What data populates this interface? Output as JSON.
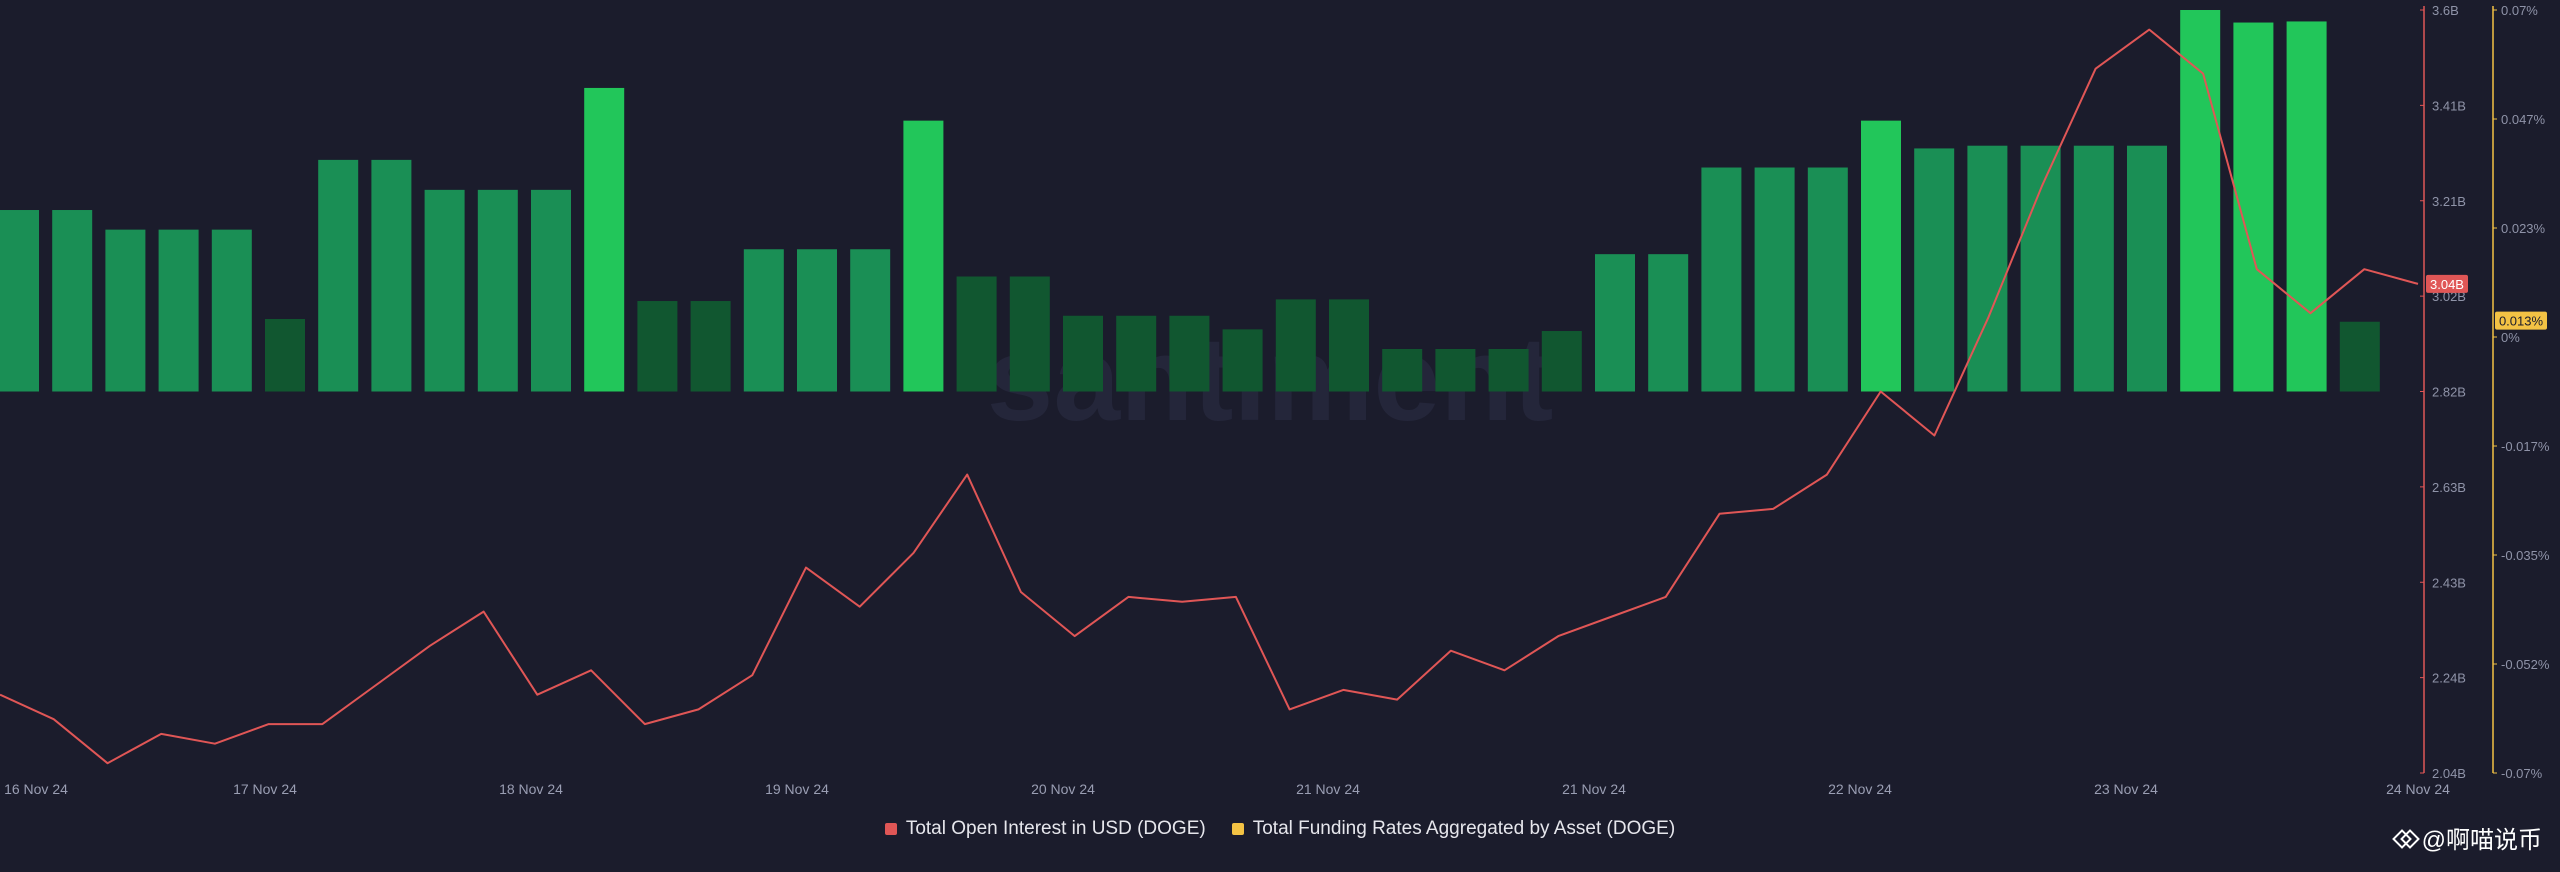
{
  "chart_data": {
    "type": "bar+line",
    "background_watermark": "santiment",
    "x_tick_labels": [
      "16 Nov 24",
      "17 Nov 24",
      "18 Nov 24",
      "19 Nov 24",
      "20 Nov 24",
      "21 Nov 24",
      "21 Nov 24",
      "22 Nov 24",
      "23 Nov 24",
      "24 Nov 24"
    ],
    "left_axis": {
      "name": "Total Open Interest in USD (DOGE)",
      "ticks": [
        "3.6B",
        "3.41B",
        "3.21B",
        "3.02B",
        "2.82B",
        "2.63B",
        "2.43B",
        "2.24B",
        "2.04B"
      ],
      "range": [
        2.04,
        3.6
      ],
      "current_value_label": "3.04B",
      "color": "#e05656"
    },
    "right_axis": {
      "name": "Total Funding Rates Aggregated by Asset (DOGE)",
      "ticks": [
        "0.07%",
        "0.047%",
        "0.023%",
        "0%",
        "-0.017%",
        "-0.035%",
        "-0.052%",
        "-0.07%"
      ],
      "range": [
        -0.07,
        0.07
      ],
      "current_value_label": "0.013%",
      "color": "#f3c244"
    },
    "series": [
      {
        "name": "Total Funding Rates Aggregated by Asset (DOGE)",
        "kind": "bar",
        "axis": "right",
        "values": [
          0.0333,
          0.0333,
          0.0297,
          0.0297,
          0.0297,
          0.0133,
          0.0425,
          0.0425,
          0.037,
          0.037,
          0.037,
          0.0557,
          0.0166,
          0.0166,
          0.0261,
          0.0261,
          0.0261,
          0.0497,
          0.0211,
          0.0211,
          0.0139,
          0.0139,
          0.0139,
          0.0114,
          0.0169,
          0.0169,
          0.0078,
          0.0078,
          0.0078,
          0.0111,
          0.0252,
          0.0252,
          0.0411,
          0.0411,
          0.0411,
          0.0497,
          0.0446,
          0.0451,
          0.0451,
          0.0451,
          0.0451,
          0.07,
          0.0677,
          0.0679,
          0.0128
        ],
        "colors": [
          "#1a8f55",
          "#1a8f55",
          "#1a8f55",
          "#1a8f55",
          "#1a8f55",
          "#115730",
          "#1a8f55",
          "#1a8f55",
          "#1a8f55",
          "#1a8f55",
          "#1a8f55",
          "#22c65a",
          "#115730",
          "#115730",
          "#1a8f55",
          "#1a8f55",
          "#1a8f55",
          "#22c65a",
          "#115730",
          "#115730",
          "#115730",
          "#115730",
          "#115730",
          "#115730",
          "#115730",
          "#115730",
          "#115730",
          "#115730",
          "#115730",
          "#115730",
          "#1a8f55",
          "#1a8f55",
          "#1a8f55",
          "#1a8f55",
          "#1a8f55",
          "#22c65a",
          "#1a8f55",
          "#1a8f55",
          "#1a8f55",
          "#1a8f55",
          "#1a8f55",
          "#22c65a",
          "#22c65a",
          "#22c65a",
          "#115730"
        ]
      },
      {
        "name": "Total Open Interest in USD (DOGE)",
        "kind": "line",
        "axis": "left",
        "x_index": [
          0,
          1,
          2,
          3,
          4,
          5,
          6,
          7,
          8,
          9,
          10,
          11,
          12,
          13,
          14,
          15,
          16,
          17,
          18,
          19,
          20,
          21,
          22,
          23,
          24,
          25,
          26,
          27,
          28,
          29,
          30,
          31,
          32,
          33,
          34,
          35,
          36,
          37,
          38,
          39,
          40,
          41,
          42,
          43,
          44,
          45
        ],
        "values": [
          2.2,
          2.15,
          2.06,
          2.12,
          2.1,
          2.14,
          2.14,
          2.22,
          2.3,
          2.37,
          2.2,
          2.25,
          2.14,
          2.17,
          2.24,
          2.46,
          2.38,
          2.49,
          2.65,
          2.41,
          2.32,
          2.4,
          2.39,
          2.4,
          2.17,
          2.21,
          2.19,
          2.29,
          2.25,
          2.32,
          2.36,
          2.4,
          2.57,
          2.58,
          2.65,
          2.82,
          2.73,
          2.97,
          3.24,
          3.48,
          3.56,
          3.47,
          3.07,
          2.98,
          3.07,
          3.04
        ]
      }
    ]
  },
  "legend": {
    "items": [
      {
        "label": "Total Open Interest in USD (DOGE)",
        "color": "#e05656"
      },
      {
        "label": "Total Funding Rates Aggregated by Asset (DOGE)",
        "color": "#f3c244"
      }
    ]
  },
  "watermark": {
    "text": "@啊喵说币"
  }
}
